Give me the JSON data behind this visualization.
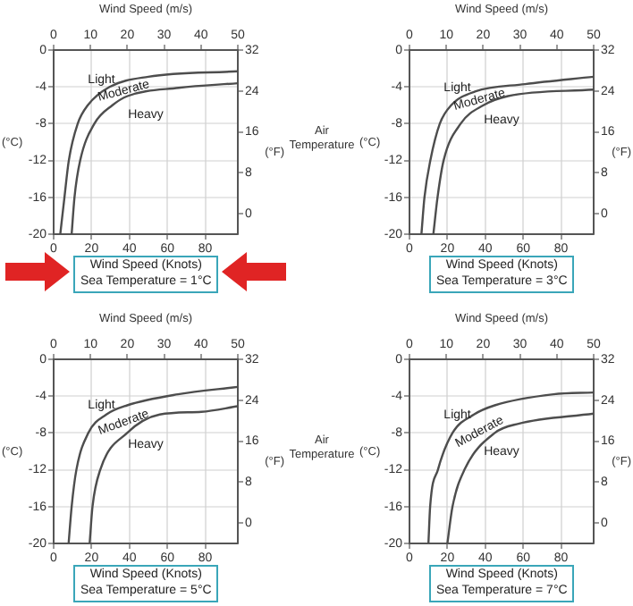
{
  "chart_data": [
    {
      "type": "line",
      "x2label": "Wind Speed (m/s)",
      "x2lim": [
        0,
        50
      ],
      "x2ticks": [
        0,
        10,
        20,
        30,
        40,
        50
      ],
      "xlabel": "Wind Speed (Knots)",
      "subtitle": "Sea Temperature = 1°C",
      "xlim": [
        0,
        97.2
      ],
      "xticks": [
        0,
        20,
        40,
        60,
        80
      ],
      "ylabel": "(°C)",
      "ylim": [
        -20,
        0
      ],
      "yticks": [
        -20,
        -16,
        -12,
        -8,
        -4,
        0
      ],
      "y2label": "(°F)",
      "y2lim": [
        -4,
        32
      ],
      "y2ticks": [
        0,
        8,
        16,
        24,
        32
      ],
      "grid": true,
      "series": [
        {
          "color": "#4d4d4d",
          "x": [
            3.5,
            5.7,
            8,
            12.7,
            18,
            29.5,
            50,
            97.2
          ],
          "values": [
            -20,
            -16,
            -12,
            -8,
            -6,
            -4,
            -2.9,
            -2.3
          ]
        },
        {
          "color": "#4d4d4d",
          "x": [
            9.5,
            11,
            14,
            21.5,
            31,
            39,
            66,
            97.2
          ],
          "values": [
            -20,
            -16,
            -12,
            -8,
            -6,
            -5,
            -4.1,
            -3.6
          ]
        }
      ],
      "annotations": [
        "Light",
        "Moderate",
        "Heavy",
        "Air Temperature"
      ]
    },
    {
      "type": "line",
      "x2label": "Wind Speed (m/s)",
      "x2lim": [
        0,
        50
      ],
      "x2ticks": [
        0,
        10,
        20,
        30,
        40,
        50
      ],
      "xlabel": "Wind Speed (Knots)",
      "subtitle": "Sea Temperature = 3°C",
      "xlim": [
        0,
        97.2
      ],
      "xticks": [
        0,
        20,
        40,
        60,
        80
      ],
      "ylabel": "(°C)",
      "ylim": [
        -20,
        0
      ],
      "yticks": [
        -20,
        -16,
        -12,
        -8,
        -4,
        0
      ],
      "y2label": "(°F)",
      "y2lim": [
        -4,
        32
      ],
      "y2ticks": [
        0,
        8,
        16,
        24,
        32
      ],
      "grid": true,
      "series": [
        {
          "color": "#4d4d4d",
          "x": [
            6.3,
            7.9,
            11,
            16,
            22,
            34.6,
            61,
            97.2
          ],
          "values": [
            -20,
            -16,
            -12,
            -8,
            -6,
            -4.5,
            -3.7,
            -2.9
          ]
        },
        {
          "color": "#4d4d4d",
          "x": [
            12.6,
            14.8,
            18,
            27,
            39,
            52,
            97.2
          ],
          "values": [
            -20,
            -16,
            -12,
            -8,
            -6,
            -5,
            -4.3
          ]
        }
      ],
      "annotations": [
        "Light",
        "Moderate",
        "Heavy"
      ]
    },
    {
      "type": "line",
      "x2label": "Wind Speed (m/s)",
      "x2lim": [
        0,
        50
      ],
      "x2ticks": [
        0,
        10,
        20,
        30,
        40,
        50
      ],
      "xlabel": "Wind Speed (Knots)",
      "subtitle": "Sea Temperature = 5°C",
      "xlim": [
        0,
        97.2
      ],
      "xticks": [
        0,
        20,
        40,
        60,
        80
      ],
      "ylabel": "(°C)",
      "ylim": [
        -20,
        0
      ],
      "yticks": [
        -20,
        -16,
        -12,
        -8,
        -4,
        0
      ],
      "y2label": "(°F)",
      "y2lim": [
        -4,
        32
      ],
      "y2ticks": [
        0,
        8,
        16,
        24,
        32
      ],
      "grid": true,
      "series": [
        {
          "color": "#4d4d4d",
          "x": [
            7.9,
            9.5,
            12,
            18.3,
            27.8,
            38.8,
            65.6,
            97.2
          ],
          "values": [
            -20,
            -16,
            -12,
            -8,
            -6,
            -5,
            -3.8,
            -3
          ]
        },
        {
          "color": "#4d4d4d",
          "x": [
            19,
            20.5,
            24.6,
            38.8,
            56,
            78,
            97.2
          ],
          "values": [
            -20,
            -16,
            -12,
            -8,
            -6,
            -5.7,
            -5.1
          ]
        }
      ],
      "annotations": [
        "Light",
        "Moderate",
        "Heavy",
        "Air Temperature"
      ]
    },
    {
      "type": "line",
      "x2label": "Wind Speed (m/s)",
      "x2lim": [
        0,
        50
      ],
      "x2ticks": [
        0,
        10,
        20,
        30,
        40,
        50
      ],
      "xlabel": "Wind Speed (Knots)",
      "subtitle": "Sea Temperature = 7°C",
      "xlim": [
        0,
        97.2
      ],
      "xticks": [
        0,
        20,
        40,
        60,
        80
      ],
      "ylabel": "(°C)",
      "ylim": [
        -20,
        0
      ],
      "yticks": [
        -20,
        -16,
        -12,
        -8,
        -4,
        0
      ],
      "y2label": "(°F)",
      "y2lim": [
        -4,
        32
      ],
      "y2ticks": [
        0,
        8,
        16,
        24,
        32
      ],
      "grid": true,
      "series": [
        {
          "color": "#4d4d4d",
          "x": [
            10,
            10.9,
            15,
            22.7,
            34,
            45,
            76,
            97.2
          ],
          "values": [
            -20,
            -16,
            -12,
            -8,
            -6,
            -5,
            -3.8,
            -3.6
          ]
        },
        {
          "color": "#4d4d4d",
          "x": [
            20,
            22.7,
            29,
            45,
            57.5,
            97.2
          ],
          "values": [
            -20,
            -16,
            -12,
            -8,
            -7,
            -5.9
          ]
        }
      ],
      "annotations": [
        "Light",
        "Moderate",
        "Heavy"
      ]
    }
  ]
}
